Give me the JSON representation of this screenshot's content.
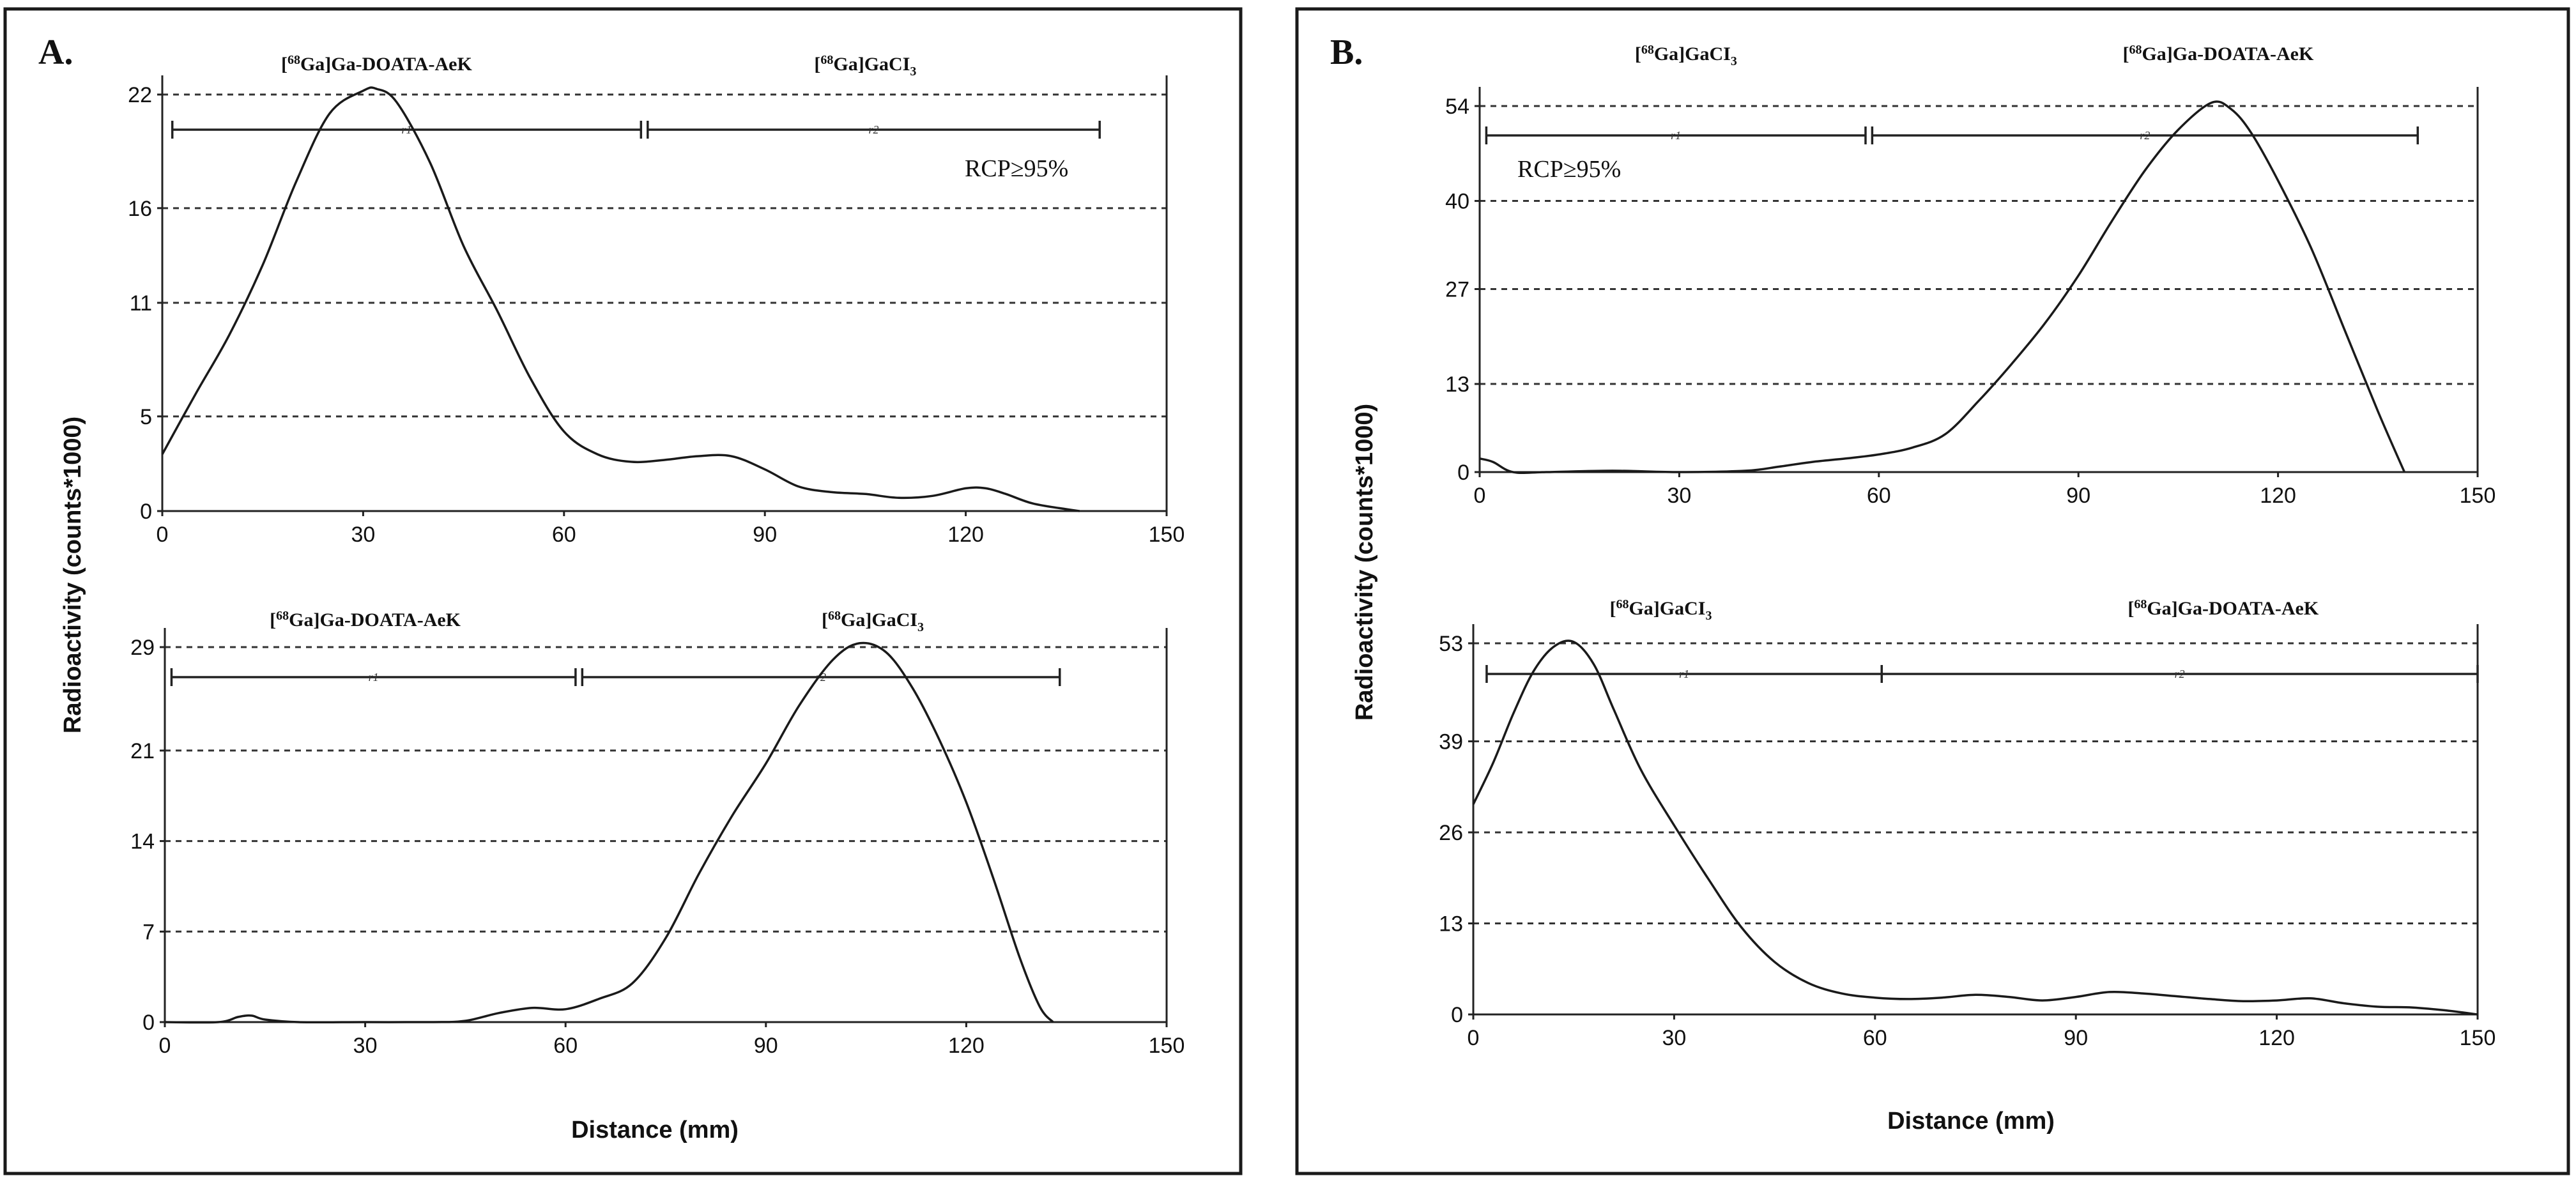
{
  "figure": {
    "panels": [
      {
        "letter": "A.",
        "ylabel": "Radioactivity (counts*1000)",
        "xlabel": "Distance (mm)",
        "rcp_text": "RCP≥95%",
        "rcp_chart": 0
      },
      {
        "letter": "B.",
        "ylabel": "Radioactivity (counts*1000)",
        "xlabel": "Distance (mm)",
        "rcp_text": "RCP≥95%",
        "rcp_chart": 0
      }
    ]
  },
  "chart_data": [
    {
      "type": "line",
      "panel": "A",
      "position": "top",
      "xlim": [
        0,
        150
      ],
      "x_ticks": [
        "0",
        "30",
        "60",
        "90",
        "120",
        "150"
      ],
      "ylim": [
        0,
        22
      ],
      "y_ticks": [
        {
          "value": 0,
          "label": "0"
        },
        {
          "value": 5,
          "label": "5"
        },
        {
          "value": 11,
          "label": "11"
        },
        {
          "value": 16,
          "label": "16"
        },
        {
          "value": 22,
          "label": "22"
        }
      ],
      "grid": "dashed horizontal",
      "peak_labels": [
        {
          "x": 32,
          "prefix": "68",
          "text_a": "Ga]Ga-DOATA-AeK",
          "text_b": ""
        },
        {
          "x": 105,
          "prefix": "68",
          "text_a": "Ga]GaCI",
          "text_b": "3"
        }
      ],
      "regions": [
        {
          "name": "r1",
          "start": 1.5,
          "end": 71.5
        },
        {
          "name": "r2",
          "start": 72.5,
          "end": 140
        }
      ],
      "series": [
        {
          "name": "radioactivity",
          "x": [
            0,
            5,
            10,
            15,
            20,
            25,
            30,
            32,
            35,
            40,
            45,
            50,
            55,
            60,
            65,
            70,
            75,
            80,
            85,
            90,
            95,
            100,
            105,
            110,
            115,
            120,
            123,
            126,
            130,
            135,
            137
          ],
          "y": [
            3.0,
            6.2,
            9.3,
            13.0,
            17.4,
            21.0,
            22.2,
            22.3,
            21.6,
            18.4,
            14.0,
            10.6,
            7.0,
            4.2,
            3.0,
            2.6,
            2.7,
            2.9,
            2.9,
            2.2,
            1.3,
            1.0,
            0.9,
            0.7,
            0.8,
            1.2,
            1.2,
            0.9,
            0.4,
            0.1,
            0.0
          ]
        }
      ]
    },
    {
      "type": "line",
      "panel": "A",
      "position": "bottom",
      "xlim": [
        0,
        150
      ],
      "x_ticks": [
        "0",
        "30",
        "60",
        "90",
        "120",
        "150"
      ],
      "ylim": [
        0,
        29
      ],
      "y_ticks": [
        {
          "value": 0,
          "label": "0"
        },
        {
          "value": 7,
          "label": "7"
        },
        {
          "value": 14,
          "label": "14"
        },
        {
          "value": 21,
          "label": "21"
        },
        {
          "value": 29,
          "label": "29"
        }
      ],
      "grid": "dashed horizontal",
      "peak_labels": [
        {
          "x": 30,
          "prefix": "68",
          "text_a": "Ga]Ga-DOATA-AeK",
          "text_b": ""
        },
        {
          "x": 106,
          "prefix": "68",
          "text_a": "Ga]GaCI",
          "text_b": "3"
        }
      ],
      "regions": [
        {
          "name": "r1",
          "start": 1,
          "end": 61.5
        },
        {
          "name": "r2",
          "start": 62.5,
          "end": 134
        }
      ],
      "series": [
        {
          "name": "radioactivity",
          "x": [
            0,
            8,
            11,
            13,
            15,
            20,
            30,
            40,
            45,
            50,
            55,
            60,
            65,
            70,
            75,
            80,
            85,
            90,
            95,
            100,
            104,
            108,
            112,
            116,
            120,
            124,
            128,
            131,
            133
          ],
          "y": [
            0.0,
            0.0,
            0.4,
            0.5,
            0.2,
            0.0,
            0.0,
            0.0,
            0.1,
            0.7,
            1.1,
            1.0,
            1.8,
            3.0,
            6.5,
            11.5,
            16.0,
            20.0,
            24.5,
            28.0,
            29.3,
            28.6,
            25.8,
            21.8,
            17.0,
            11.2,
            5.0,
            1.2,
            0.0
          ]
        }
      ]
    },
    {
      "type": "line",
      "panel": "B",
      "position": "top",
      "xlim": [
        0,
        150
      ],
      "x_ticks": [
        "0",
        "30",
        "60",
        "90",
        "120",
        "150"
      ],
      "ylim": [
        0,
        54
      ],
      "y_ticks": [
        {
          "value": 0,
          "label": "0"
        },
        {
          "value": 13,
          "label": "13"
        },
        {
          "value": 27,
          "label": "27"
        },
        {
          "value": 40,
          "label": "40"
        },
        {
          "value": 54,
          "label": "54"
        }
      ],
      "grid": "dashed horizontal",
      "peak_labels": [
        {
          "x": 31,
          "prefix": "68",
          "text_a": "Ga]GaCI",
          "text_b": "3"
        },
        {
          "x": 111,
          "prefix": "68",
          "text_a": "Ga]Ga-DOATA-AeK",
          "text_b": ""
        }
      ],
      "regions": [
        {
          "name": "r1",
          "start": 1,
          "end": 58
        },
        {
          "name": "r2",
          "start": 59,
          "end": 141
        }
      ],
      "series": [
        {
          "name": "radioactivity",
          "x": [
            0,
            2,
            5,
            10,
            20,
            30,
            40,
            45,
            50,
            55,
            60,
            65,
            70,
            75,
            80,
            85,
            90,
            95,
            100,
            105,
            110,
            113,
            116,
            120,
            125,
            130,
            135,
            139
          ],
          "y": [
            2.0,
            1.5,
            0.0,
            0.0,
            0.2,
            0.0,
            0.2,
            0.8,
            1.5,
            2.0,
            2.6,
            3.6,
            5.6,
            10.5,
            16.0,
            22.0,
            29.0,
            37.0,
            44.5,
            50.5,
            54.5,
            53.5,
            50.0,
            43.0,
            33.0,
            21.0,
            9.0,
            0.0
          ]
        }
      ]
    },
    {
      "type": "line",
      "panel": "B",
      "position": "bottom",
      "xlim": [
        0,
        150
      ],
      "x_ticks": [
        "0",
        "30",
        "60",
        "90",
        "120",
        "150"
      ],
      "ylim": [
        0,
        53
      ],
      "y_ticks": [
        {
          "value": 0,
          "label": "0"
        },
        {
          "value": 13,
          "label": "13"
        },
        {
          "value": 26,
          "label": "26"
        },
        {
          "value": 39,
          "label": "39"
        },
        {
          "value": 53,
          "label": "53"
        }
      ],
      "grid": "dashed horizontal",
      "peak_labels": [
        {
          "x": 28,
          "prefix": "68",
          "text_a": "Ga]GaCI",
          "text_b": "3"
        },
        {
          "x": 112,
          "prefix": "68",
          "text_a": "Ga]Ga-DOATA-AeK",
          "text_b": ""
        }
      ],
      "regions": [
        {
          "name": "r1",
          "start": 2,
          "end": 61
        },
        {
          "name": "r2",
          "start": 61,
          "end": 150
        }
      ],
      "series": [
        {
          "name": "radioactivity",
          "x": [
            0,
            3,
            6,
            9,
            12,
            15,
            18,
            21,
            25,
            30,
            35,
            40,
            45,
            50,
            55,
            60,
            65,
            70,
            75,
            80,
            85,
            90,
            95,
            100,
            105,
            110,
            115,
            120,
            125,
            130,
            135,
            140,
            145,
            150
          ],
          "y": [
            30.0,
            36.0,
            43.0,
            49.0,
            52.5,
            53.2,
            50.0,
            43.5,
            35.0,
            27.0,
            19.5,
            12.5,
            7.5,
            4.5,
            3.0,
            2.4,
            2.2,
            2.4,
            2.8,
            2.5,
            2.0,
            2.5,
            3.2,
            3.0,
            2.6,
            2.2,
            1.9,
            2.0,
            2.3,
            1.6,
            1.1,
            1.0,
            0.6,
            0.0
          ]
        }
      ]
    }
  ]
}
